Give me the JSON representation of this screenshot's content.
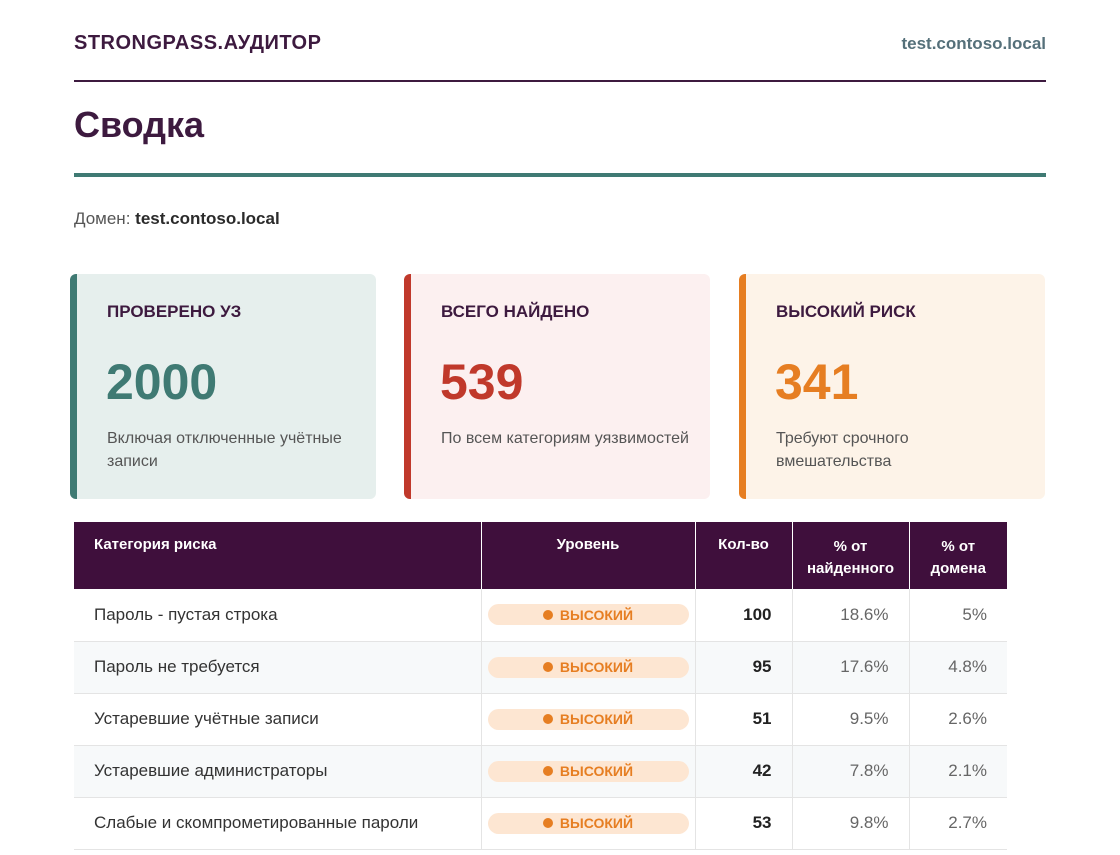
{
  "header": {
    "brand": "STRONGPASS.АУДИТОР",
    "host": "test.contoso.local"
  },
  "page": {
    "title": "Сводка",
    "domain_label": "Домен:",
    "domain_value": "test.contoso.local"
  },
  "cards": [
    {
      "label": "ПРОВЕРЕНО УЗ",
      "value": "2000",
      "note": "Включая отключенные учётные записи",
      "accent": "#3f7a73"
    },
    {
      "label": "ВСЕГО НАЙДЕНО",
      "value": "539",
      "note": "По всем категориям уязвимостей",
      "accent": "#c0392b"
    },
    {
      "label": "ВЫСОКИЙ РИСК",
      "value": "341",
      "note": "Требуют срочного вмешательства",
      "accent": "#e67e22"
    }
  ],
  "table": {
    "headers": {
      "category": "Категория риска",
      "level": "Уровень",
      "count": "Кол-во",
      "pct_found": "% от найденного",
      "pct_domain": "% от домена"
    },
    "rows": [
      {
        "category": "Пароль - пустая строка",
        "level": "ВЫСОКИЙ",
        "count": "100",
        "pct_found": "18.6%",
        "pct_domain": "5%"
      },
      {
        "category": "Пароль не требуется",
        "level": "ВЫСОКИЙ",
        "count": "95",
        "pct_found": "17.6%",
        "pct_domain": "4.8%"
      },
      {
        "category": "Устаревшие учётные записи",
        "level": "ВЫСОКИЙ",
        "count": "51",
        "pct_found": "9.5%",
        "pct_domain": "2.6%"
      },
      {
        "category": "Устаревшие администраторы",
        "level": "ВЫСОКИЙ",
        "count": "42",
        "pct_found": "7.8%",
        "pct_domain": "2.1%"
      },
      {
        "category": "Слабые и скомпрометированные пароли",
        "level": "ВЫСОКИЙ",
        "count": "53",
        "pct_found": "9.8%",
        "pct_domain": "2.7%"
      }
    ]
  },
  "colors": {
    "primary": "#3d1a3f",
    "teal": "#3f7a73",
    "red": "#c0392b",
    "orange": "#e67e22"
  }
}
